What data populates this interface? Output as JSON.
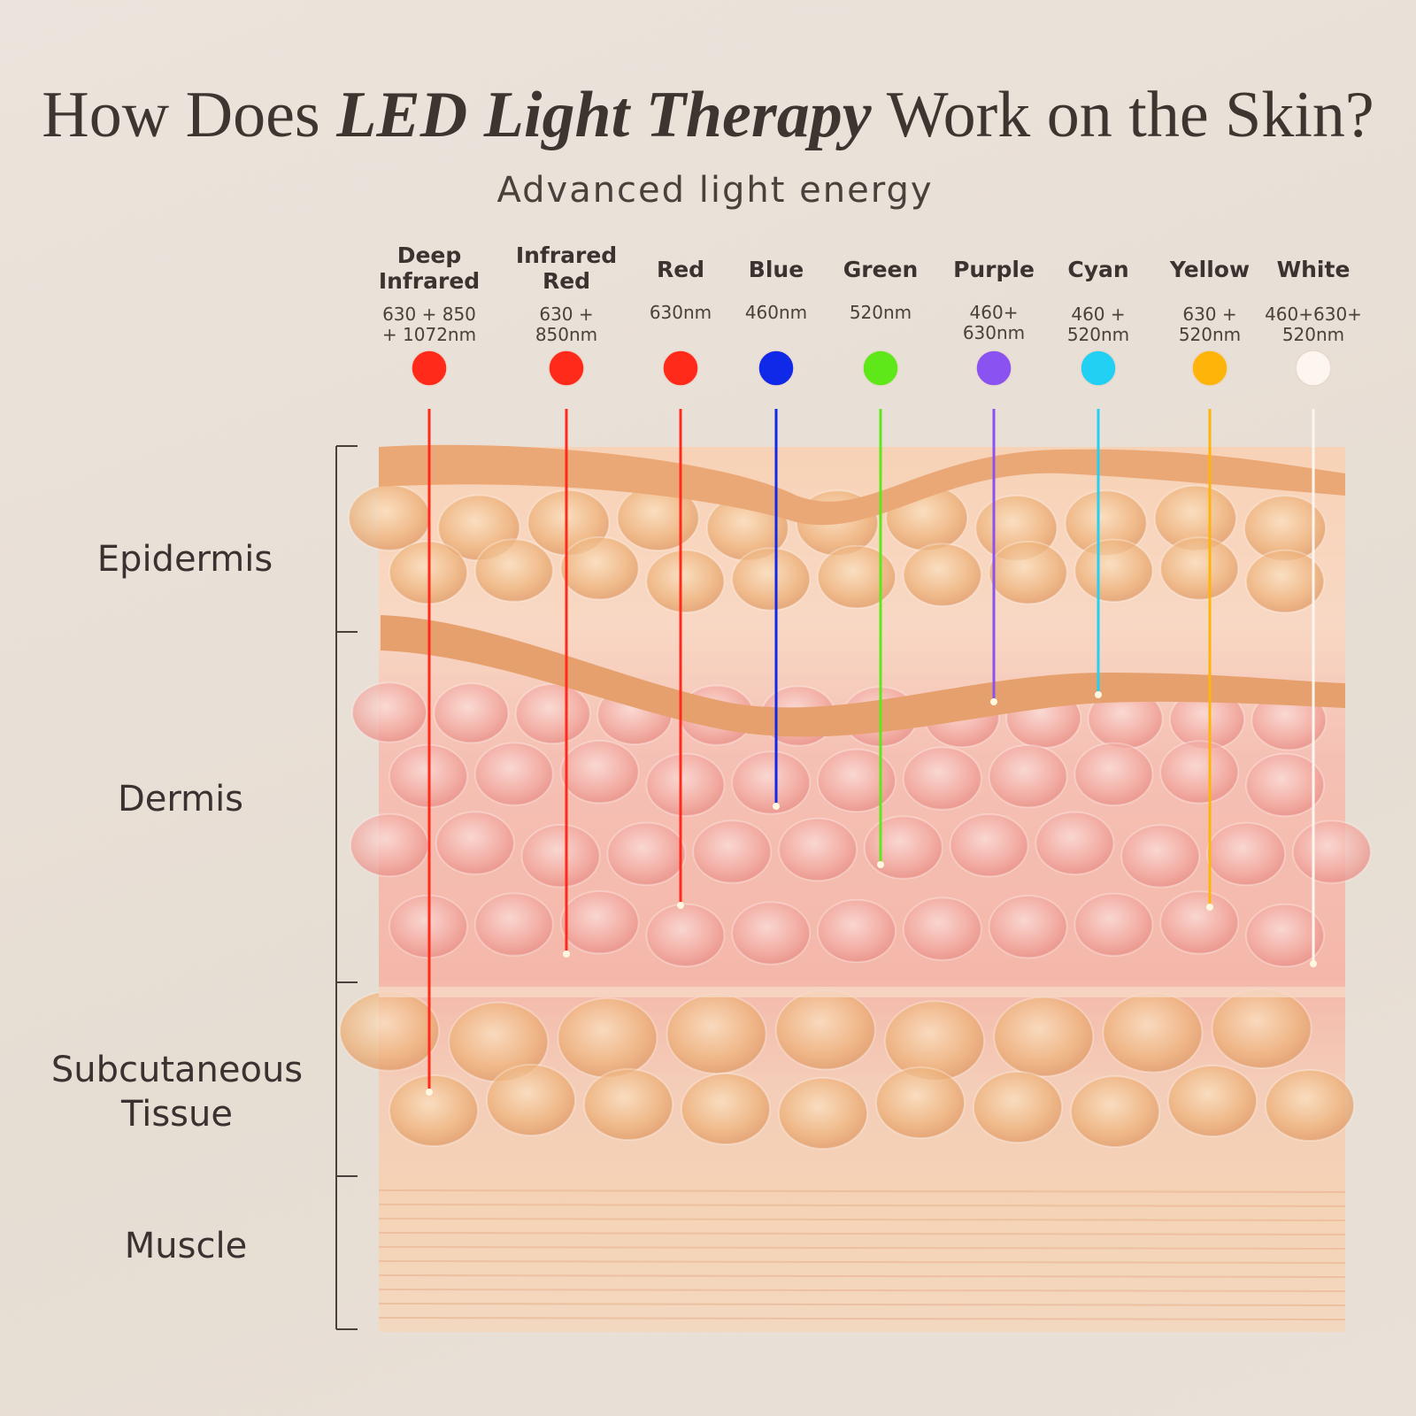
{
  "header": {
    "title": {
      "prefix": "How Does",
      "emphasis": "LED Light Therapy",
      "suffix": "Work on the Skin?"
    },
    "subtitle": "Advanced light energy"
  },
  "lights": [
    {
      "name": "Deep Infrared",
      "wavelength": "630 + 850 + 1072nm",
      "color": "#ff2a1a"
    },
    {
      "name": "Infrared Red",
      "wavelength": "630 + 850nm",
      "color": "#ff2a1a"
    },
    {
      "name": "Red",
      "wavelength": "630nm",
      "color": "#ff2a1a"
    },
    {
      "name": "Blue",
      "wavelength": "460nm",
      "color": "#1028e8"
    },
    {
      "name": "Green",
      "wavelength": "520nm",
      "color": "#5ee81a"
    },
    {
      "name": "Purple",
      "wavelength": "460+ 630nm",
      "color": "#8a52f0"
    },
    {
      "name": "Cyan",
      "wavelength": "460 + 520nm",
      "color": "#22d0f4"
    },
    {
      "name": "Yellow",
      "wavelength": "630 + 520nm",
      "color": "#ffb40a"
    },
    {
      "name": "White",
      "wavelength": "460+630+ 520nm",
      "color": "#fdf6f0"
    }
  ],
  "layers": [
    "Epidermis",
    "Dermis",
    "Subcutaneous Tissue",
    "Muscle"
  ]
}
